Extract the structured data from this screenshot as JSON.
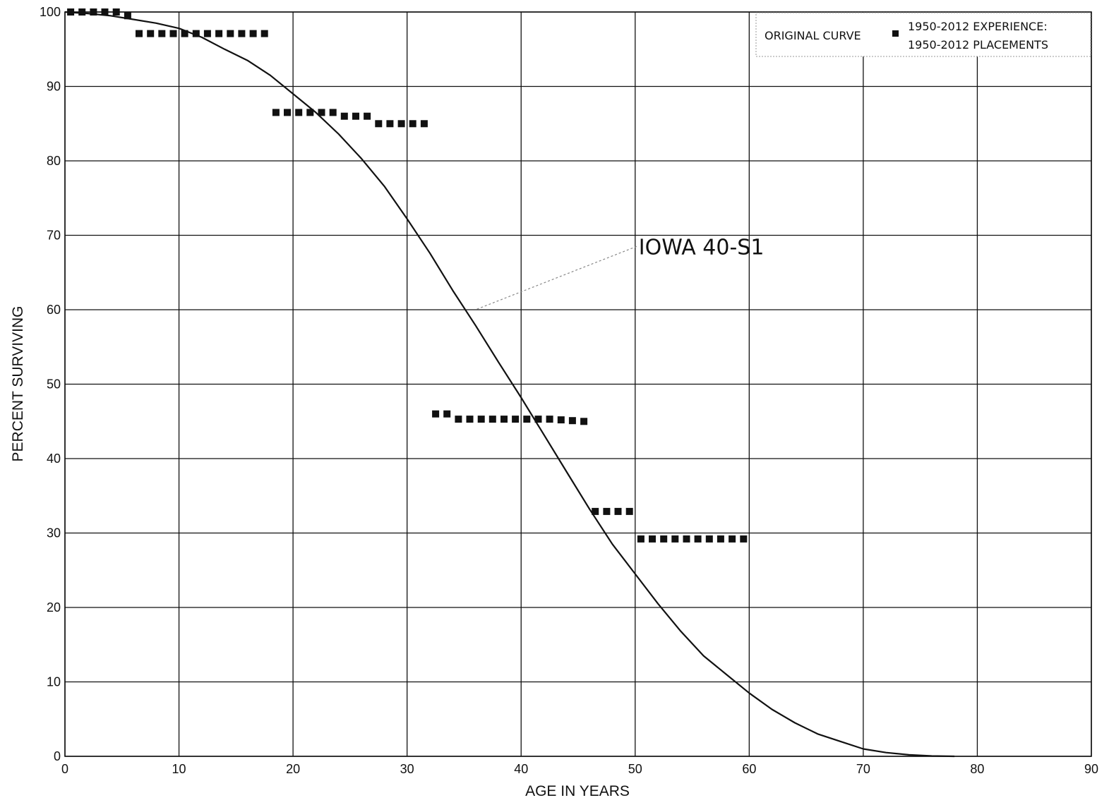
{
  "chart_data": {
    "type": "scatter",
    "xlabel": "AGE IN YEARS",
    "ylabel": "PERCENT SURVIVING",
    "xlim": [
      0,
      90
    ],
    "ylim": [
      0,
      100
    ],
    "x_ticks": [
      0,
      10,
      20,
      30,
      40,
      50,
      60,
      70,
      80,
      90
    ],
    "y_ticks": [
      0,
      10,
      20,
      30,
      40,
      50,
      60,
      70,
      80,
      90,
      100
    ],
    "grid": true,
    "legend_position": "top-right",
    "legend": {
      "line_label": "ORIGINAL CURVE",
      "marker_label_line1": "1950-2012 EXPERIENCE:",
      "marker_label_line2": "1950-2012 PLACEMENTS"
    },
    "annotation": {
      "text": "IOWA 40-S1",
      "x": 50,
      "y": 68.5,
      "points_to": [
        36,
        60
      ]
    },
    "series": [
      {
        "name": "ORIGINAL CURVE",
        "kind": "line",
        "color": "#111111",
        "x": [
          0,
          2,
          4,
          6,
          8,
          10,
          12,
          14,
          16,
          18,
          20,
          22,
          24,
          26,
          28,
          30,
          32,
          34,
          36,
          38,
          40,
          42,
          44,
          46,
          48,
          50,
          52,
          54,
          56,
          58,
          60,
          62,
          64,
          66,
          68,
          70,
          72,
          74,
          76,
          78
        ],
        "y": [
          100,
          99.8,
          99.5,
          99.0,
          98.5,
          97.8,
          96.6,
          95.0,
          93.5,
          91.5,
          89.0,
          86.5,
          83.6,
          80.3,
          76.6,
          72.2,
          67.6,
          62.6,
          57.9,
          53.0,
          48.2,
          43.2,
          38.2,
          33.2,
          28.5,
          24.5,
          20.5,
          16.8,
          13.5,
          11.0,
          8.5,
          6.3,
          4.5,
          3.0,
          2.0,
          1.0,
          0.5,
          0.2,
          0.05,
          0
        ]
      },
      {
        "name": "1950-2012 EXPERIENCE: 1950-2012 PLACEMENTS",
        "kind": "marker",
        "color": "#111111",
        "x": [
          0.5,
          1.5,
          2.5,
          3.5,
          4.5,
          5.5,
          6.5,
          7.5,
          8.5,
          9.5,
          10.5,
          11.5,
          12.5,
          13.5,
          14.5,
          15.5,
          16.5,
          17.5,
          18.5,
          19.5,
          20.5,
          21.5,
          22.5,
          23.5,
          24.5,
          25.5,
          26.5,
          27.5,
          28.5,
          29.5,
          30.5,
          31.5,
          32.5,
          33.5,
          34.5,
          35.5,
          36.5,
          37.5,
          38.5,
          39.5,
          40.5,
          41.5,
          42.5,
          43.5,
          44.5,
          45.5,
          46.5,
          47.5,
          48.5,
          49.5,
          50.5,
          51.5,
          52.5,
          53.5,
          54.5,
          55.5,
          56.5,
          57.5,
          58.5,
          59.5
        ],
        "y": [
          100,
          100,
          100,
          100,
          100,
          99.5,
          97.1,
          97.1,
          97.1,
          97.1,
          97.1,
          97.1,
          97.1,
          97.1,
          97.1,
          97.1,
          97.1,
          97.1,
          86.5,
          86.5,
          86.5,
          86.5,
          86.5,
          86.5,
          86.0,
          86.0,
          86.0,
          85.0,
          85.0,
          85.0,
          85.0,
          85.0,
          46.0,
          46.0,
          45.3,
          45.3,
          45.3,
          45.3,
          45.3,
          45.3,
          45.3,
          45.3,
          45.3,
          45.2,
          45.1,
          45.0,
          32.9,
          32.9,
          32.9,
          32.9,
          29.2,
          29.2,
          29.2,
          29.2,
          29.2,
          29.2,
          29.2,
          29.2,
          29.2,
          29.2
        ]
      }
    ]
  }
}
